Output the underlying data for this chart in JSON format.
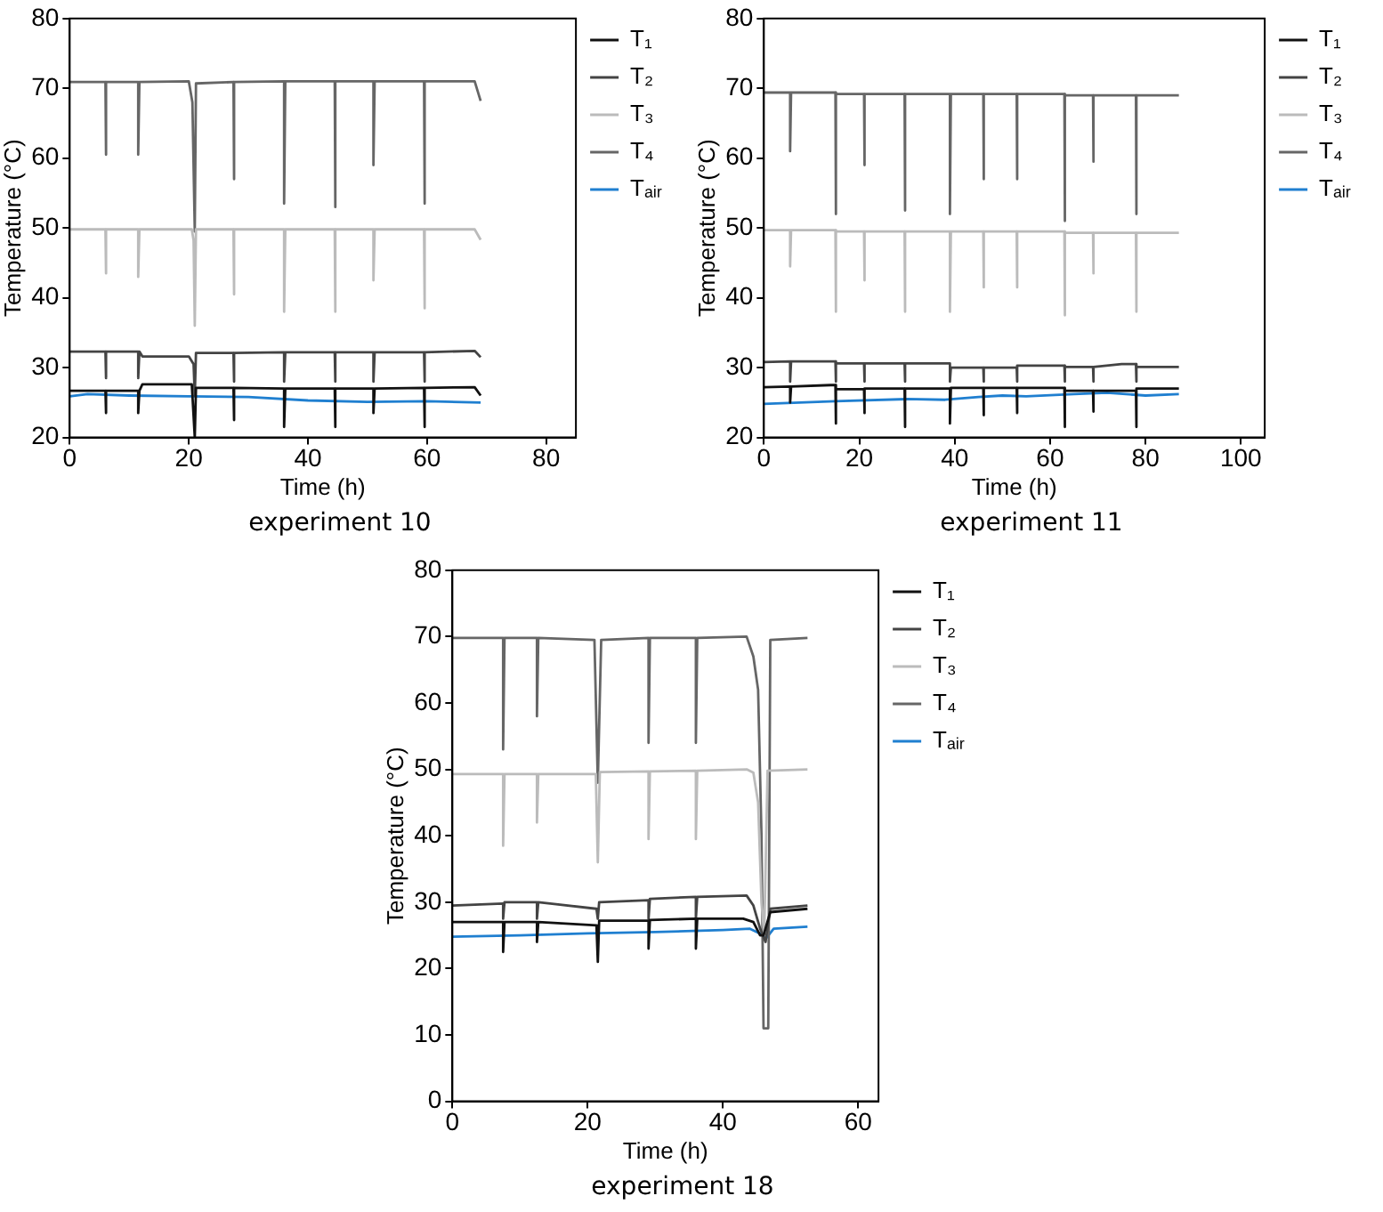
{
  "chart_data": [
    {
      "type": "line",
      "title": "experiment 10",
      "xlabel": "Time (h)",
      "ylabel": "Temperature (°C)",
      "xlim": [
        0,
        85
      ],
      "xticks": [
        0,
        20,
        40,
        60,
        80
      ],
      "ylim": [
        20,
        80
      ],
      "yticks": [
        20,
        30,
        40,
        50,
        60,
        70,
        80
      ],
      "grid": false,
      "legend": "right",
      "series": [
        {
          "name": "T₁",
          "color": "#111111",
          "x": [
            0,
            6,
            6,
            6.2,
            11.5,
            11.5,
            11.7,
            12.2,
            20.5,
            21,
            21.2,
            27.5,
            27.5,
            27.7,
            36,
            36,
            36.2,
            44.5,
            44.5,
            44.7,
            51,
            51,
            51.2,
            59.5,
            59.5,
            59.7,
            68,
            69
          ],
          "values": [
            26.7,
            26.7,
            23.5,
            26.7,
            26.7,
            23.5,
            26.7,
            27.6,
            27.6,
            20,
            27.1,
            27.1,
            22.5,
            27.1,
            27,
            21.5,
            27,
            27,
            21.5,
            27,
            27,
            23.5,
            27,
            27.1,
            21.5,
            27.1,
            27.2,
            26
          ]
        },
        {
          "name": "T₂",
          "color": "#444444",
          "x": [
            0,
            6,
            6,
            6.2,
            11.5,
            11.5,
            11.7,
            12.2,
            20,
            20.8,
            21,
            21.2,
            27.5,
            27.5,
            27.7,
            36,
            36,
            36.2,
            44.5,
            44.5,
            44.7,
            51,
            51,
            51.2,
            59.5,
            59.5,
            59.7,
            68,
            69
          ],
          "values": [
            32.3,
            32.3,
            28.5,
            32.3,
            32.3,
            28.5,
            32.3,
            31.6,
            31.6,
            30.5,
            26,
            32.1,
            32.1,
            28,
            32.1,
            32.2,
            28,
            32.2,
            32.2,
            28,
            32.2,
            32.2,
            28,
            32.2,
            32.2,
            28,
            32.2,
            32.4,
            31.5
          ]
        },
        {
          "name": "T₃",
          "color": "#bbbbbb",
          "x": [
            0,
            6,
            6,
            6.2,
            11.5,
            11.5,
            11.7,
            20.5,
            20.8,
            21,
            21.2,
            27.5,
            27.5,
            27.7,
            36,
            36,
            36.2,
            44.5,
            44.5,
            44.7,
            51,
            51,
            51.2,
            59.5,
            59.5,
            59.7,
            68,
            69
          ],
          "values": [
            49.8,
            49.8,
            43.5,
            49.8,
            49.8,
            43,
            49.8,
            49.8,
            48.2,
            36,
            49.8,
            49.8,
            40.5,
            49.8,
            49.8,
            38,
            49.8,
            49.8,
            38,
            49.8,
            49.8,
            42.5,
            49.8,
            49.8,
            38.5,
            49.8,
            49.8,
            48.3
          ]
        },
        {
          "name": "T₄",
          "color": "#666666",
          "x": [
            0,
            6,
            6,
            6.2,
            11.5,
            11.5,
            11.7,
            20,
            20.6,
            21,
            21.2,
            27.5,
            27.5,
            27.7,
            36,
            36,
            36.2,
            44.5,
            44.5,
            44.7,
            51,
            51,
            51.2,
            59.5,
            59.5,
            59.7,
            68,
            69
          ],
          "values": [
            70.9,
            70.9,
            60.5,
            70.9,
            70.9,
            60.5,
            70.9,
            71,
            68,
            49.5,
            70.7,
            70.9,
            57,
            70.9,
            71,
            53.5,
            71,
            71,
            53,
            71,
            71,
            59,
            71,
            71,
            53.5,
            71,
            71,
            68.2
          ]
        },
        {
          "name": "Tₐᵢᵣ",
          "color": "#1f7fd0",
          "x": [
            0,
            3,
            10,
            20,
            30,
            40,
            50,
            60,
            69
          ],
          "values": [
            25.9,
            26.2,
            26,
            25.9,
            25.8,
            25.3,
            25.1,
            25.2,
            25
          ]
        }
      ]
    },
    {
      "type": "line",
      "title": "experiment 11",
      "xlabel": "Time (h)",
      "ylabel": "Temperature (°C)",
      "xlim": [
        0,
        105
      ],
      "xticks": [
        0,
        20,
        40,
        60,
        80,
        100
      ],
      "ylim": [
        20,
        80
      ],
      "yticks": [
        20,
        30,
        40,
        50,
        60,
        70,
        80
      ],
      "grid": false,
      "legend": "right",
      "series": [
        {
          "name": "T₁",
          "color": "#111111",
          "x": [
            0,
            5.5,
            5.5,
            5.7,
            14,
            15,
            15,
            15.2,
            21,
            21,
            21.2,
            29.5,
            29.5,
            29.7,
            39,
            39,
            39.2,
            46,
            46,
            46.2,
            53,
            53,
            53.2,
            63,
            63,
            63.2,
            69,
            69,
            69.2,
            78,
            78,
            78.2,
            87
          ],
          "values": [
            27.2,
            27.3,
            25,
            27.3,
            27.5,
            27.5,
            22,
            26.9,
            26.9,
            23.5,
            27,
            27,
            21.5,
            27,
            27,
            22,
            27.1,
            27.1,
            23.2,
            27.1,
            27.1,
            23.5,
            27.1,
            27.1,
            21.5,
            26.7,
            26.7,
            23.7,
            26.7,
            26.7,
            21.5,
            27,
            27
          ]
        },
        {
          "name": "T₂",
          "color": "#444444",
          "x": [
            0,
            5.5,
            5.5,
            5.7,
            15,
            15,
            15.2,
            21,
            21,
            21.2,
            29.5,
            29.5,
            29.7,
            39,
            39,
            39.2,
            46,
            46,
            46.2,
            53,
            53,
            53.2,
            63,
            63,
            63.2,
            69,
            69,
            69.2,
            75,
            78,
            78,
            78.2,
            87
          ],
          "values": [
            30.8,
            30.9,
            28,
            30.9,
            30.9,
            28,
            30.6,
            30.6,
            28,
            30.6,
            30.6,
            28,
            30.6,
            30.6,
            28,
            30,
            30,
            28,
            30,
            30,
            28,
            30.3,
            30.3,
            28,
            30.1,
            30.1,
            28,
            30.1,
            30.5,
            30.5,
            28,
            30.1,
            30.1
          ]
        },
        {
          "name": "T₃",
          "color": "#bbbbbb",
          "x": [
            0,
            5.5,
            5.5,
            5.7,
            15,
            15,
            15.2,
            21,
            21,
            21.2,
            29.5,
            29.5,
            29.7,
            39,
            39,
            39.2,
            46,
            46,
            46.2,
            53,
            53,
            53.2,
            63,
            63,
            63.2,
            69,
            69,
            69.2,
            78,
            78,
            78.2,
            87
          ],
          "values": [
            49.7,
            49.7,
            44.5,
            49.7,
            49.7,
            38,
            49.5,
            49.5,
            42.5,
            49.5,
            49.5,
            38,
            49.5,
            49.5,
            38,
            49.5,
            49.5,
            41.5,
            49.5,
            49.5,
            41.5,
            49.5,
            49.5,
            37.5,
            49.3,
            49.3,
            43.5,
            49.3,
            49.3,
            38,
            49.3,
            49.3
          ]
        },
        {
          "name": "T₄",
          "color": "#666666",
          "x": [
            0,
            5.5,
            5.5,
            5.7,
            15,
            15,
            15.2,
            21,
            21,
            21.2,
            29.5,
            29.5,
            29.7,
            39,
            39,
            39.2,
            46,
            46,
            46.2,
            53,
            53,
            53.2,
            63,
            63,
            63.2,
            69,
            69,
            69.2,
            78,
            78,
            78.2,
            87
          ],
          "values": [
            69.4,
            69.4,
            61,
            69.4,
            69.4,
            52,
            69.2,
            69.2,
            59,
            69.2,
            69.2,
            52.5,
            69.2,
            69.2,
            52,
            69.2,
            69.2,
            57,
            69.2,
            69.2,
            57,
            69.2,
            69.2,
            51,
            69,
            69,
            59.5,
            69,
            69,
            52,
            69,
            69
          ]
        },
        {
          "name": "Tₐᵢᵣ",
          "color": "#1f7fd0",
          "x": [
            0,
            15,
            30,
            38,
            45,
            50,
            55,
            65,
            72,
            80,
            87
          ],
          "values": [
            24.8,
            25.2,
            25.5,
            25.4,
            25.8,
            26,
            25.9,
            26.2,
            26.4,
            26,
            26.2
          ]
        }
      ]
    },
    {
      "type": "line",
      "title": "experiment 18",
      "xlabel": "Time (h)",
      "ylabel": "Temperature (°C)",
      "xlim": [
        0,
        63
      ],
      "xticks": [
        0,
        20,
        40,
        60
      ],
      "ylim": [
        0,
        80
      ],
      "yticks": [
        0,
        10,
        20,
        30,
        40,
        50,
        60,
        70,
        80
      ],
      "grid": false,
      "legend": "right",
      "series": [
        {
          "name": "T₁",
          "color": "#111111",
          "x": [
            0,
            7.5,
            7.5,
            7.7,
            12.5,
            12.5,
            12.7,
            21.3,
            21.5,
            21.7,
            29,
            29,
            29.2,
            36,
            36,
            36.2,
            43,
            44.5,
            45.5,
            46,
            47,
            52.5
          ],
          "values": [
            27,
            27,
            22.5,
            27,
            27,
            24,
            27,
            26.5,
            21,
            27.2,
            27.2,
            23,
            27.3,
            27.5,
            23,
            27.5,
            27.5,
            27,
            25,
            25,
            28.5,
            29
          ]
        },
        {
          "name": "T₂",
          "color": "#444444",
          "x": [
            0,
            7.5,
            7.5,
            7.7,
            12.5,
            12.5,
            12.7,
            21.3,
            21.5,
            21.7,
            29,
            29,
            29.2,
            36,
            36,
            36.2,
            43.5,
            44.5,
            45.5,
            46.3,
            47,
            52.5
          ],
          "values": [
            29.5,
            29.8,
            27.5,
            30,
            30,
            27.5,
            30,
            29,
            27.5,
            30,
            30.3,
            27.5,
            30.5,
            30.8,
            27.5,
            30.8,
            31,
            29.5,
            26,
            24,
            29,
            29.5
          ]
        },
        {
          "name": "T₃",
          "color": "#bbbbbb",
          "x": [
            0,
            7.5,
            7.5,
            7.7,
            12.5,
            12.5,
            12.7,
            21.2,
            21.5,
            21.8,
            29,
            29,
            29.2,
            36,
            36,
            36.2,
            43.5,
            44.5,
            45.2,
            45.7,
            46.1,
            46.6,
            52.5
          ],
          "values": [
            49.3,
            49.3,
            38.5,
            49.3,
            49.3,
            42,
            49.3,
            49.3,
            36,
            49.6,
            49.7,
            39.5,
            49.7,
            49.8,
            39.5,
            49.8,
            50,
            49.5,
            45,
            30,
            25,
            49.8,
            50
          ]
        },
        {
          "name": "T₄",
          "color": "#666666",
          "x": [
            0,
            7.5,
            7.5,
            7.7,
            12.5,
            12.5,
            12.7,
            21,
            21.5,
            22,
            29,
            29,
            29.2,
            36,
            36,
            36.2,
            43.5,
            44.5,
            45.2,
            45.7,
            46,
            46.7,
            47,
            52.5
          ],
          "values": [
            69.8,
            69.8,
            53,
            69.8,
            69.8,
            58,
            69.8,
            69.5,
            48,
            69.5,
            69.8,
            54,
            69.8,
            69.8,
            54,
            69.8,
            70,
            67,
            62,
            40,
            11,
            11,
            69.5,
            69.8
          ]
        },
        {
          "name": "Tₐᵢᵣ",
          "color": "#1f7fd0",
          "x": [
            0,
            10,
            20,
            30,
            40,
            44,
            46,
            46.5,
            47.5,
            52.5
          ],
          "values": [
            24.8,
            25,
            25.3,
            25.5,
            25.8,
            26,
            25,
            24.7,
            26,
            26.3
          ]
        }
      ]
    }
  ]
}
